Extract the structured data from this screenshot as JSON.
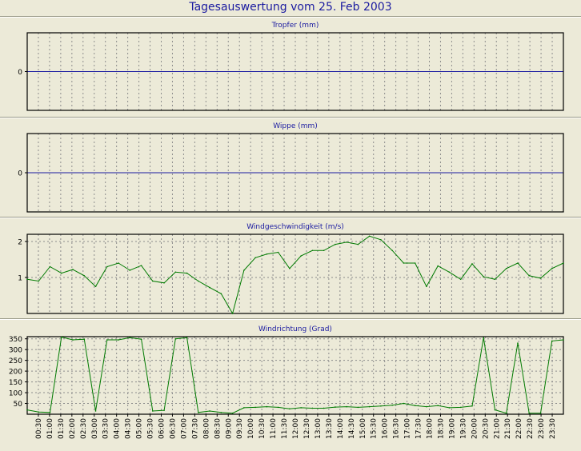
{
  "title": "Tagesauswertung vom 25. Feb 2003",
  "colors": {
    "background": "#ecead8",
    "title": "#1a1aa0",
    "zero_line": "#1a1aa0",
    "series": "#007a00"
  },
  "x_tick_labels": [
    "00:30",
    "01:00",
    "01:30",
    "02:00",
    "02:30",
    "03:00",
    "03:30",
    "04:00",
    "04:30",
    "05:00",
    "05:30",
    "06:00",
    "06:30",
    "07:00",
    "07:30",
    "08:00",
    "08:30",
    "09:00",
    "09:30",
    "10:00",
    "10:30",
    "11:00",
    "11:30",
    "12:00",
    "12:30",
    "13:00",
    "13:30",
    "14:00",
    "14:30",
    "15:00",
    "15:30",
    "16:00",
    "16:30",
    "17:00",
    "17:30",
    "18:00",
    "18:30",
    "19:00",
    "19:30",
    "20:00",
    "20:30",
    "21:00",
    "21:30",
    "22:00",
    "22:30",
    "23:00",
    "23:30"
  ],
  "chart_data": [
    {
      "type": "line",
      "title": "Tropfer (mm)",
      "ylim": [
        -1,
        1
      ],
      "yticks": [
        "0"
      ],
      "ytick_values": [
        0
      ],
      "grid": true,
      "values": []
    },
    {
      "type": "line",
      "title": "Wippe (mm)",
      "ylim": [
        -1,
        1
      ],
      "yticks": [
        "0"
      ],
      "ytick_values": [
        0
      ],
      "grid": true,
      "values": []
    },
    {
      "type": "line",
      "title": "Windgeschwindigkeit (m/s)",
      "ylim": [
        0,
        2.2
      ],
      "yticks": [
        "1",
        "2"
      ],
      "ytick_values": [
        1,
        2
      ],
      "grid": true,
      "values": [
        0.95,
        0.9,
        1.3,
        1.12,
        1.22,
        1.05,
        0.75,
        1.3,
        1.4,
        1.2,
        1.33,
        0.9,
        0.85,
        1.15,
        1.12,
        0.9,
        0.72,
        0.55,
        0.0,
        1.2,
        1.55,
        1.65,
        1.7,
        1.25,
        1.6,
        1.75,
        1.75,
        1.92,
        1.98,
        1.92,
        2.15,
        2.05,
        1.75,
        1.4,
        1.4,
        0.75,
        1.32,
        1.15,
        0.95,
        1.38,
        1.02,
        0.95,
        1.25,
        1.4,
        1.05,
        0.98,
        1.25,
        1.4
      ]
    },
    {
      "type": "line",
      "title": "Windrichtung (Grad)",
      "ylim": [
        0,
        360
      ],
      "yticks": [
        "50",
        "100",
        "150",
        "200",
        "250",
        "300",
        "350"
      ],
      "ytick_values": [
        50,
        100,
        150,
        200,
        250,
        300,
        350
      ],
      "grid": true,
      "values": [
        20,
        10,
        8,
        358,
        345,
        348,
        15,
        345,
        345,
        355,
        348,
        15,
        18,
        350,
        355,
        8,
        15,
        8,
        5,
        30,
        32,
        35,
        32,
        25,
        30,
        28,
        28,
        33,
        35,
        32,
        35,
        38,
        42,
        50,
        40,
        35,
        40,
        30,
        32,
        38,
        355,
        20,
        5,
        330,
        5,
        5,
        340,
        345
      ]
    }
  ]
}
